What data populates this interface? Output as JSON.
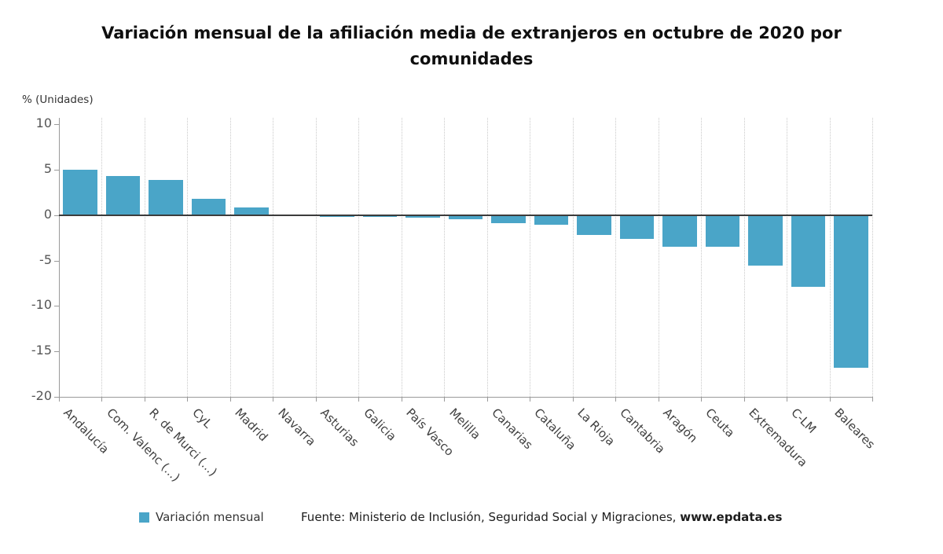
{
  "chart_data": {
    "type": "bar",
    "title": "Variación mensual de la afiliación media de extranjeros en octubre de 2020 por comunidades",
    "ylabel": "% (Unidades)",
    "xlabel": "",
    "legend": "Variación mensual",
    "legend_position": "bottom",
    "grid": "vertical-dotted",
    "bar_color": "#4aa5c8",
    "ylim": [
      -20,
      10
    ],
    "yticks": [
      10,
      5,
      0,
      -5,
      -10,
      -15,
      -20
    ],
    "categories": [
      "Andalucía",
      "Com. Valenc (...)",
      "R. de Murci (...)",
      "CyL",
      "Madrid",
      "Navarra",
      "Asturias",
      "Galicia",
      "País Vasco",
      "Melilla",
      "Canarias",
      "Cataluña",
      "La Rioja",
      "Cantabria",
      "Aragón",
      "Ceuta",
      "Extremadura",
      "C-LM",
      "Baleares"
    ],
    "values": [
      5.0,
      4.3,
      3.9,
      1.8,
      0.8,
      -0.1,
      -0.2,
      -0.2,
      -0.3,
      -0.5,
      -0.9,
      -1.1,
      -2.2,
      -2.6,
      -3.5,
      -3.5,
      -5.6,
      -7.9,
      -16.8
    ]
  },
  "footer": {
    "source_prefix": "Fuente: Ministerio de Inclusión, Seguridad Social y Migraciones, ",
    "source_link": "www.epdata.es"
  }
}
